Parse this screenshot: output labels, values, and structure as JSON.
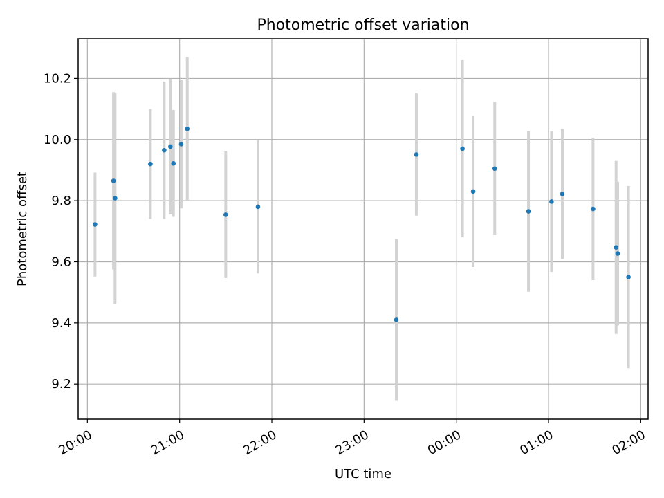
{
  "chart_data": {
    "type": "scatter",
    "title": "Photometric offset variation",
    "xlabel": "UTC time",
    "ylabel": "Photometric offset",
    "x_unit": "UTC hours (values past 24 are after midnight)",
    "xlim": [
      19.9,
      26.08
    ],
    "ylim": [
      9.085,
      10.33
    ],
    "xticks": [
      {
        "value": 20,
        "label": "20:00"
      },
      {
        "value": 21,
        "label": "21:00"
      },
      {
        "value": 22,
        "label": "22:00"
      },
      {
        "value": 23,
        "label": "23:00"
      },
      {
        "value": 24,
        "label": "00:00"
      },
      {
        "value": 25,
        "label": "01:00"
      },
      {
        "value": 26,
        "label": "02:00"
      }
    ],
    "yticks": [
      9.2,
      9.4,
      9.6,
      9.8,
      10.0,
      10.2
    ],
    "grid": true,
    "point_color": "#1f77b4",
    "errorbar_color": "#d3d3d3",
    "points": [
      {
        "x": 20.083,
        "y": 9.722,
        "err": 0.17
      },
      {
        "x": 20.283,
        "y": 9.865,
        "err": 0.29
      },
      {
        "x": 20.3,
        "y": 9.808,
        "err": 0.345
      },
      {
        "x": 20.683,
        "y": 9.92,
        "err": 0.18
      },
      {
        "x": 20.833,
        "y": 9.965,
        "err": 0.225
      },
      {
        "x": 20.9,
        "y": 9.977,
        "err": 0.222
      },
      {
        "x": 20.933,
        "y": 9.922,
        "err": 0.175
      },
      {
        "x": 21.017,
        "y": 9.985,
        "err": 0.21
      },
      {
        "x": 21.083,
        "y": 10.035,
        "err": 0.235
      },
      {
        "x": 21.5,
        "y": 9.754,
        "err": 0.207
      },
      {
        "x": 21.85,
        "y": 9.78,
        "err": 0.218
      },
      {
        "x": 23.35,
        "y": 9.41,
        "err": 0.265
      },
      {
        "x": 23.567,
        "y": 9.951,
        "err": 0.2
      },
      {
        "x": 24.067,
        "y": 9.97,
        "err": 0.29
      },
      {
        "x": 24.183,
        "y": 9.83,
        "err": 0.247
      },
      {
        "x": 24.417,
        "y": 9.905,
        "err": 0.218
      },
      {
        "x": 24.783,
        "y": 9.765,
        "err": 0.263
      },
      {
        "x": 25.033,
        "y": 9.797,
        "err": 0.23
      },
      {
        "x": 25.15,
        "y": 9.822,
        "err": 0.213
      },
      {
        "x": 25.483,
        "y": 9.773,
        "err": 0.233
      },
      {
        "x": 25.733,
        "y": 9.647,
        "err": 0.283
      },
      {
        "x": 25.75,
        "y": 9.627,
        "err": 0.235
      },
      {
        "x": 25.867,
        "y": 9.55,
        "err": 0.298
      }
    ]
  }
}
